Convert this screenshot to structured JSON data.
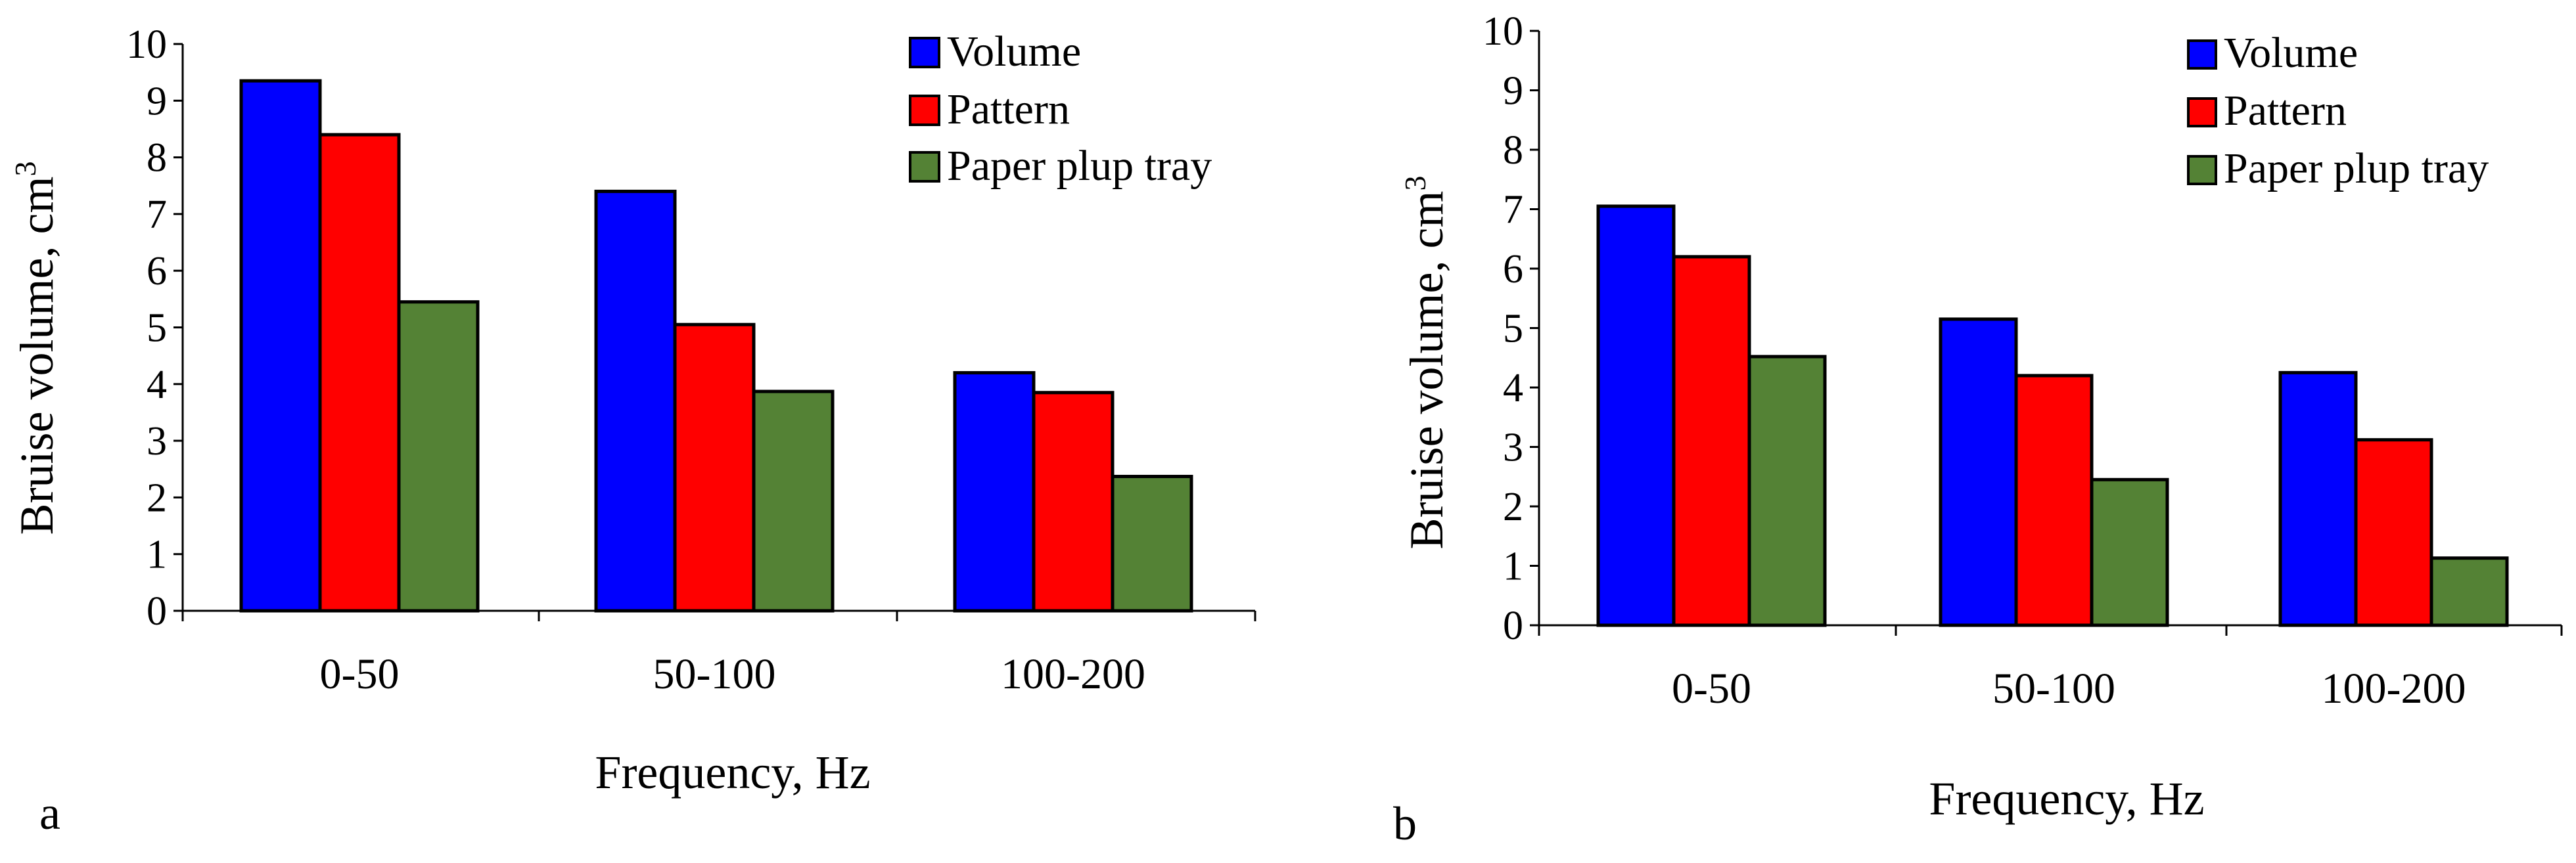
{
  "colors": {
    "volume": "#0000ff",
    "pattern": "#ff0000",
    "tray": "#548235"
  },
  "chart_data": [
    {
      "panel": "a",
      "type": "bar",
      "categories": [
        "0-50",
        "50-100",
        "100-200"
      ],
      "series": [
        {
          "name": "Volume",
          "color": "#0000ff",
          "values": [
            9.35,
            7.4,
            4.2
          ]
        },
        {
          "name": "Pattern",
          "color": "#ff0000",
          "values": [
            8.4,
            5.05,
            3.85
          ]
        },
        {
          "name": "Paper plup tray",
          "color": "#548235",
          "values": [
            5.45,
            3.87,
            2.37
          ]
        }
      ],
      "xlabel": "Frequency, Hz",
      "ylabel": "Bruise volume, cm",
      "ylabel_sup": "3",
      "ylim": [
        0,
        10
      ],
      "yticks": [
        "0",
        "1",
        "2",
        "3",
        "4",
        "5",
        "6",
        "7",
        "8",
        "9",
        "10"
      ],
      "legend": "top-right",
      "grid": false
    },
    {
      "panel": "b",
      "type": "bar",
      "categories": [
        "0-50",
        "50-100",
        "100-200"
      ],
      "series": [
        {
          "name": "Volume",
          "color": "#0000ff",
          "values": [
            7.05,
            5.15,
            4.25
          ]
        },
        {
          "name": "Pattern",
          "color": "#ff0000",
          "values": [
            6.2,
            4.2,
            3.12
          ]
        },
        {
          "name": "Paper plup tray",
          "color": "#548235",
          "values": [
            4.52,
            2.45,
            1.13
          ]
        }
      ],
      "xlabel": "Frequency, Hz",
      "ylabel": "Bruise volume, cm",
      "ylabel_sup": "3",
      "ylim": [
        0,
        10
      ],
      "yticks": [
        "0",
        "1",
        "2",
        "3",
        "4",
        "5",
        "6",
        "7",
        "8",
        "9",
        "10"
      ],
      "legend": "top-right",
      "grid": false
    }
  ]
}
